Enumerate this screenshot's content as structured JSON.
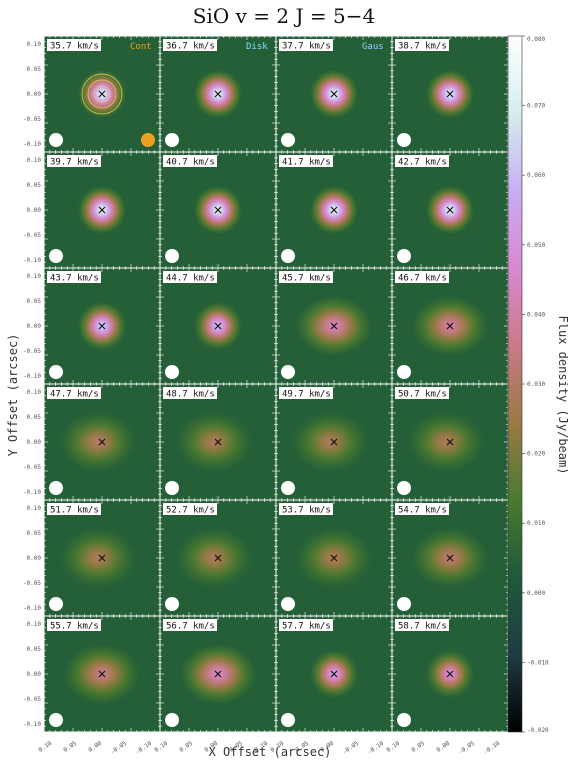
{
  "figure": {
    "title": "SiO  v = 2  J = 5−4",
    "xlabel": "X Offset (arcsec)",
    "ylabel": "Y Offset (arcsec)",
    "colorbar_label": "Flux density (Jy/beam)"
  },
  "axes": {
    "y_ticks": [
      "0.10",
      "0.05",
      "0.00",
      "-0.05",
      "-0.10"
    ],
    "x_ticks": [
      "0.10",
      "0.05",
      "0.00",
      "-0.05",
      "-0.10"
    ]
  },
  "colorbar": {
    "ticks": [
      "0.080",
      "0.070",
      "0.060",
      "0.050",
      "0.040",
      "0.030",
      "0.020",
      "0.010",
      "0.000",
      "-0.010",
      "-0.020"
    ],
    "range": [
      -0.02,
      0.08
    ],
    "colors": [
      "#000000",
      "#1f3c44",
      "#1e5a3a",
      "#4a7a2e",
      "#9a7a45",
      "#c87a88",
      "#d989d2",
      "#c8aef2",
      "#d4eeee",
      "#ffffff"
    ]
  },
  "markers": {
    "cont_label": "Cont",
    "disk_label": "Disk",
    "gaus_label": "Gaus",
    "cont_color": "#f0a020",
    "disk_color": "#7fe2ff",
    "gaus_color": "#8fd1ff"
  },
  "panels": [
    {
      "velocity": "35.7 km/s",
      "peak": 0.078
    },
    {
      "velocity": "36.7 km/s",
      "peak": 0.078
    },
    {
      "velocity": "37.7 km/s",
      "peak": 0.078
    },
    {
      "velocity": "38.7 km/s",
      "peak": 0.076
    },
    {
      "velocity": "39.7 km/s",
      "peak": 0.078
    },
    {
      "velocity": "40.7 km/s",
      "peak": 0.078
    },
    {
      "velocity": "41.7 km/s",
      "peak": 0.078
    },
    {
      "velocity": "42.7 km/s",
      "peak": 0.078
    },
    {
      "velocity": "43.7 km/s",
      "peak": 0.07
    },
    {
      "velocity": "44.7 km/s",
      "peak": 0.065
    },
    {
      "velocity": "45.7 km/s",
      "peak": 0.046
    },
    {
      "velocity": "46.7 km/s",
      "peak": 0.042
    },
    {
      "velocity": "47.7 km/s",
      "peak": 0.032
    },
    {
      "velocity": "48.7 km/s",
      "peak": 0.03
    },
    {
      "velocity": "49.7 km/s",
      "peak": 0.03
    },
    {
      "velocity": "50.7 km/s",
      "peak": 0.03
    },
    {
      "velocity": "51.7 km/s",
      "peak": 0.03
    },
    {
      "velocity": "52.7 km/s",
      "peak": 0.03
    },
    {
      "velocity": "53.7 km/s",
      "peak": 0.03
    },
    {
      "velocity": "54.7 km/s",
      "peak": 0.034
    },
    {
      "velocity": "55.7 km/s",
      "peak": 0.038
    },
    {
      "velocity": "56.7 km/s",
      "peak": 0.048
    },
    {
      "velocity": "57.7 km/s",
      "peak": 0.058
    },
    {
      "velocity": "58.7 km/s",
      "peak": 0.052
    }
  ]
}
